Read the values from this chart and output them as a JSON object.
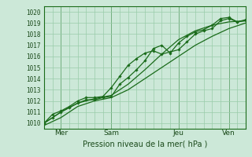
{
  "xlabel": "Pression niveau de la mer( hPa )",
  "bg_color": "#cce8d8",
  "grid_color": "#99ccaa",
  "line_color": "#1a6b1a",
  "spine_color": "#1a6b1a",
  "xlim": [
    0,
    72
  ],
  "ylim": [
    1009.5,
    1020.5
  ],
  "yticks": [
    1010,
    1011,
    1012,
    1013,
    1014,
    1015,
    1016,
    1017,
    1018,
    1019,
    1020
  ],
  "day_ticks": [
    {
      "x": 6,
      "label": "Mer"
    },
    {
      "x": 24,
      "label": "Sam"
    },
    {
      "x": 48,
      "label": "Jeu"
    },
    {
      "x": 66,
      "label": "Ven"
    }
  ],
  "series_smooth1": {
    "x": [
      0,
      6,
      12,
      18,
      24,
      30,
      36,
      42,
      48,
      54,
      60,
      66,
      72
    ],
    "y": [
      1009.8,
      1010.5,
      1011.5,
      1012.0,
      1012.3,
      1013.0,
      1014.0,
      1015.0,
      1016.0,
      1017.0,
      1017.8,
      1018.5,
      1019.0
    ]
  },
  "series_smooth2": {
    "x": [
      0,
      6,
      12,
      18,
      24,
      30,
      36,
      42,
      48,
      54,
      60,
      66,
      72
    ],
    "y": [
      1010.0,
      1011.0,
      1011.8,
      1012.2,
      1012.5,
      1013.5,
      1014.8,
      1016.2,
      1017.5,
      1018.3,
      1018.8,
      1019.1,
      1019.2
    ]
  },
  "series_marker1": {
    "x": [
      0,
      3,
      6,
      9,
      12,
      15,
      18,
      21,
      24,
      27,
      30,
      33,
      36,
      39,
      42,
      45,
      48,
      51,
      54,
      57,
      60,
      63,
      66,
      69,
      72
    ],
    "y": [
      1010.0,
      1010.8,
      1011.1,
      1011.5,
      1012.0,
      1012.3,
      1012.3,
      1012.4,
      1013.2,
      1014.2,
      1015.2,
      1015.8,
      1016.3,
      1016.5,
      1016.2,
      1016.4,
      1016.6,
      1017.3,
      1018.0,
      1018.3,
      1018.5,
      1019.2,
      1019.4,
      1019.1,
      1019.2
    ]
  },
  "series_marker2": {
    "x": [
      0,
      3,
      6,
      9,
      12,
      15,
      18,
      21,
      24,
      27,
      30,
      33,
      36,
      39,
      42,
      45,
      48,
      51,
      54,
      57,
      60,
      63,
      66,
      69,
      72
    ],
    "y": [
      1010.0,
      1010.5,
      1011.0,
      1011.4,
      1011.8,
      1012.1,
      1012.1,
      1012.3,
      1012.4,
      1013.5,
      1014.1,
      1014.8,
      1015.6,
      1016.7,
      1017.0,
      1016.3,
      1017.2,
      1017.8,
      1018.2,
      1018.4,
      1018.8,
      1019.4,
      1019.5,
      1019.1,
      1019.3
    ]
  }
}
